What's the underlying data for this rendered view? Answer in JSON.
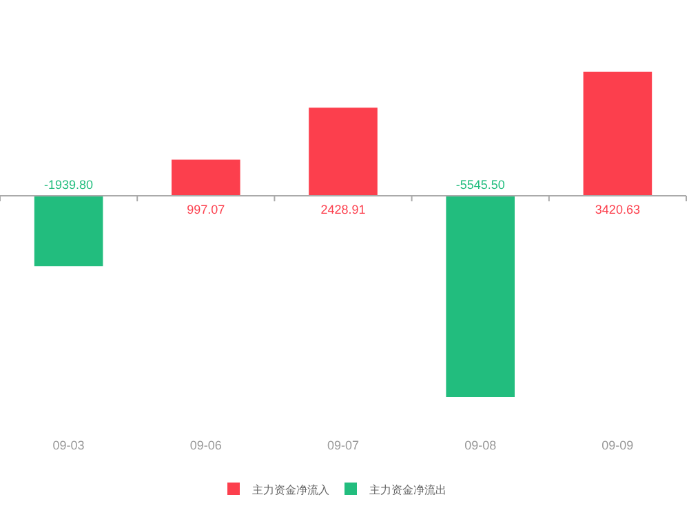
{
  "chart_data": {
    "type": "bar",
    "categories": [
      "09-03",
      "09-06",
      "09-07",
      "09-08",
      "09-09"
    ],
    "series": [
      {
        "name": "主力资金净流入",
        "color": "#fc3f4d",
        "values": [
          null,
          997.07,
          2428.91,
          null,
          3420.63
        ],
        "value_labels": [
          null,
          "997.07",
          "2428.91",
          null,
          "3420.63"
        ]
      },
      {
        "name": "主力资金净流出",
        "color": "#22bd7e",
        "values": [
          -1939.8,
          null,
          null,
          -5545.5,
          null
        ],
        "value_labels": [
          "-1939.80",
          null,
          null,
          "-5545.50",
          null
        ]
      }
    ],
    "legend": "bottom",
    "grid": false
  }
}
